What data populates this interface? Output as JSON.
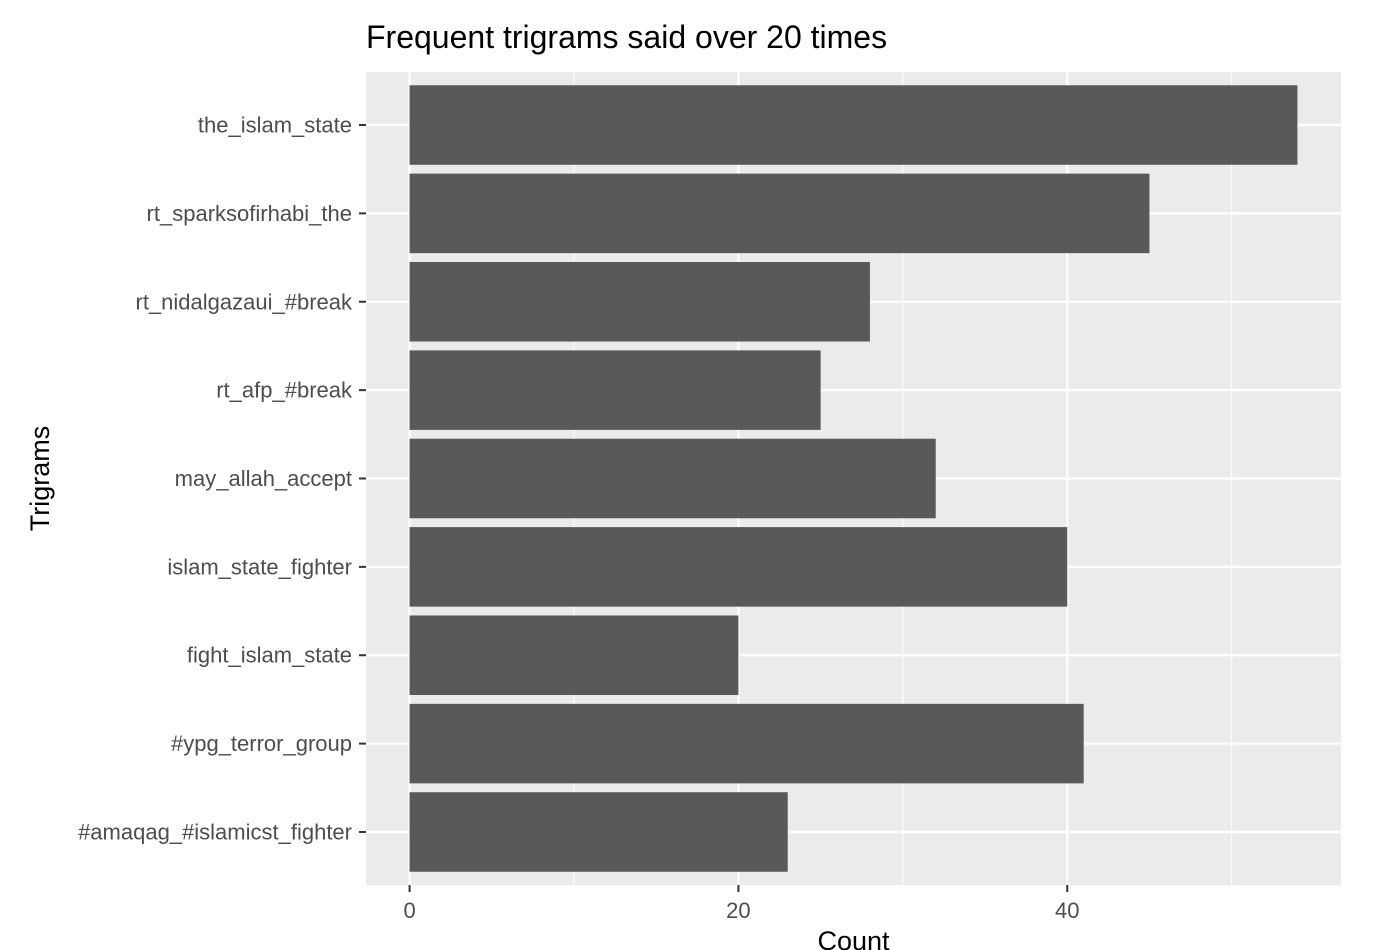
{
  "chart_data": {
    "type": "bar",
    "orientation": "horizontal",
    "title": "Frequent trigrams said over 20 times",
    "xlabel": "Count",
    "ylabel": "Trigrams",
    "categories": [
      "the_islam_state",
      "rt_sparksofirhabi_the",
      "rt_nidalgazaui_#break",
      "rt_afp_#break",
      "may_allah_accept",
      "islam_state_fighter",
      "fight_islam_state",
      "#ypg_terror_group",
      "#amaqag_#islamicst_fighter"
    ],
    "values": [
      54,
      45,
      28,
      25,
      32,
      40,
      20,
      41,
      23
    ],
    "xlim": [
      -2.65,
      56.65
    ],
    "xticks": [
      0,
      20,
      40
    ],
    "xticks_minor": [
      10,
      30,
      50
    ],
    "grid": true,
    "legend": "none",
    "colors": {
      "bar": "#595959",
      "panel": "#ebebeb",
      "grid": "#ffffff",
      "tick_text": "#4d4d4d",
      "tick_mark": "#333333"
    }
  }
}
